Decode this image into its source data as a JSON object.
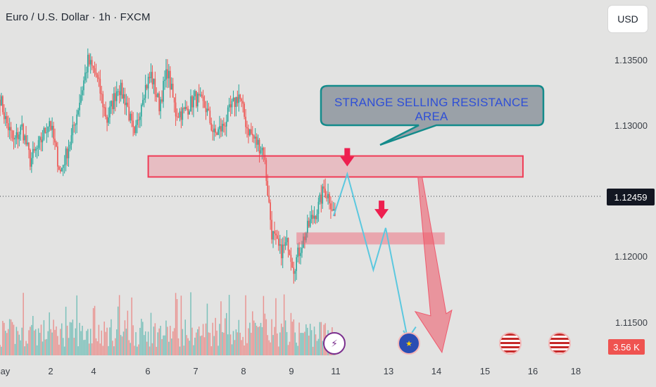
{
  "header": {
    "title": "Euro / U.S. Dollar · 1h · FXCM",
    "currency_button": "USD"
  },
  "price_axis": {
    "labels": [
      "1.13500",
      "1.13000",
      "1.12000",
      "1.11500"
    ],
    "current_price": "1.12459"
  },
  "volume_axis": {
    "current_volume": "3.56 K"
  },
  "time_axis": {
    "labels": [
      "lay",
      "2",
      "4",
      "6",
      "7",
      "8",
      "9",
      "11",
      "13",
      "14",
      "15",
      "16",
      "18"
    ]
  },
  "annotation": {
    "callout_text": "STRANGE SELLING RESISTANCE AREA"
  },
  "events": [
    {
      "icon": "lightning-icon",
      "color": "#7b2f8e"
    },
    {
      "icon": "eu-flag-icon",
      "color": "#2a4db3"
    },
    {
      "icon": "us-flag-icon",
      "color": "#c62828"
    },
    {
      "icon": "us-flag-icon",
      "color": "#c62828"
    }
  ],
  "colors": {
    "bull": "#26a69a",
    "bear": "#ef5350",
    "zone": "#ef5a6e",
    "projection": "#5bc8df"
  },
  "chart_data": {
    "type": "candlestick",
    "ylim": [
      1.1146,
      1.139
    ],
    "yticks": [
      1.135,
      1.13,
      1.12,
      1.115
    ],
    "x_labels": [
      "lay",
      "2",
      "4",
      "6",
      "7",
      "8",
      "9",
      "11",
      "13",
      "14",
      "15",
      "16",
      "18"
    ],
    "trend_anchors": [
      [
        0,
        1.1325
      ],
      [
        4,
        1.131
      ],
      [
        10,
        1.1295
      ],
      [
        16,
        1.1305
      ],
      [
        22,
        1.1283
      ],
      [
        28,
        1.1292
      ],
      [
        36,
        1.131
      ],
      [
        44,
        1.1275
      ],
      [
        52,
        1.1298
      ],
      [
        58,
        1.1323
      ],
      [
        64,
        1.1349
      ],
      [
        70,
        1.134
      ],
      [
        78,
        1.131
      ],
      [
        86,
        1.1333
      ],
      [
        92,
        1.1322
      ],
      [
        98,
        1.1297
      ],
      [
        104,
        1.1328
      ],
      [
        110,
        1.134
      ],
      [
        116,
        1.132
      ],
      [
        122,
        1.1343
      ],
      [
        128,
        1.1315
      ],
      [
        134,
        1.1315
      ],
      [
        142,
        1.1325
      ],
      [
        150,
        1.1318
      ],
      [
        156,
        1.13
      ],
      [
        162,
        1.1305
      ],
      [
        168,
        1.1317
      ],
      [
        174,
        1.1327
      ],
      [
        180,
        1.1305
      ],
      [
        186,
        1.1296
      ],
      [
        192,
        1.129
      ],
      [
        198,
        1.1235
      ],
      [
        204,
        1.1222
      ],
      [
        210,
        1.1228
      ],
      [
        214,
        1.1212
      ],
      [
        220,
        1.1228
      ],
      [
        226,
        1.1242
      ],
      [
        232,
        1.1252
      ],
      [
        236,
        1.1264
      ],
      [
        240,
        1.1258
      ],
      [
        244,
        1.1246
      ]
    ],
    "resistance_zone": [
      1.1272,
      1.1286
    ],
    "support_zone": [
      1.1227,
      1.1235
    ],
    "projection_path": [
      [
        243,
        1.12459
      ],
      [
        253,
        1.1274
      ],
      [
        272,
        1.121
      ],
      [
        281,
        1.1238
      ],
      [
        297,
        1.1164
      ],
      [
        303,
        1.1172
      ]
    ],
    "big_arrow": {
      "from": [
        306,
        1.1272
      ],
      "to": [
        322,
        1.1155
      ]
    },
    "markers": [
      [
        253,
        1.1279
      ],
      [
        278,
        1.1244
      ]
    ]
  }
}
